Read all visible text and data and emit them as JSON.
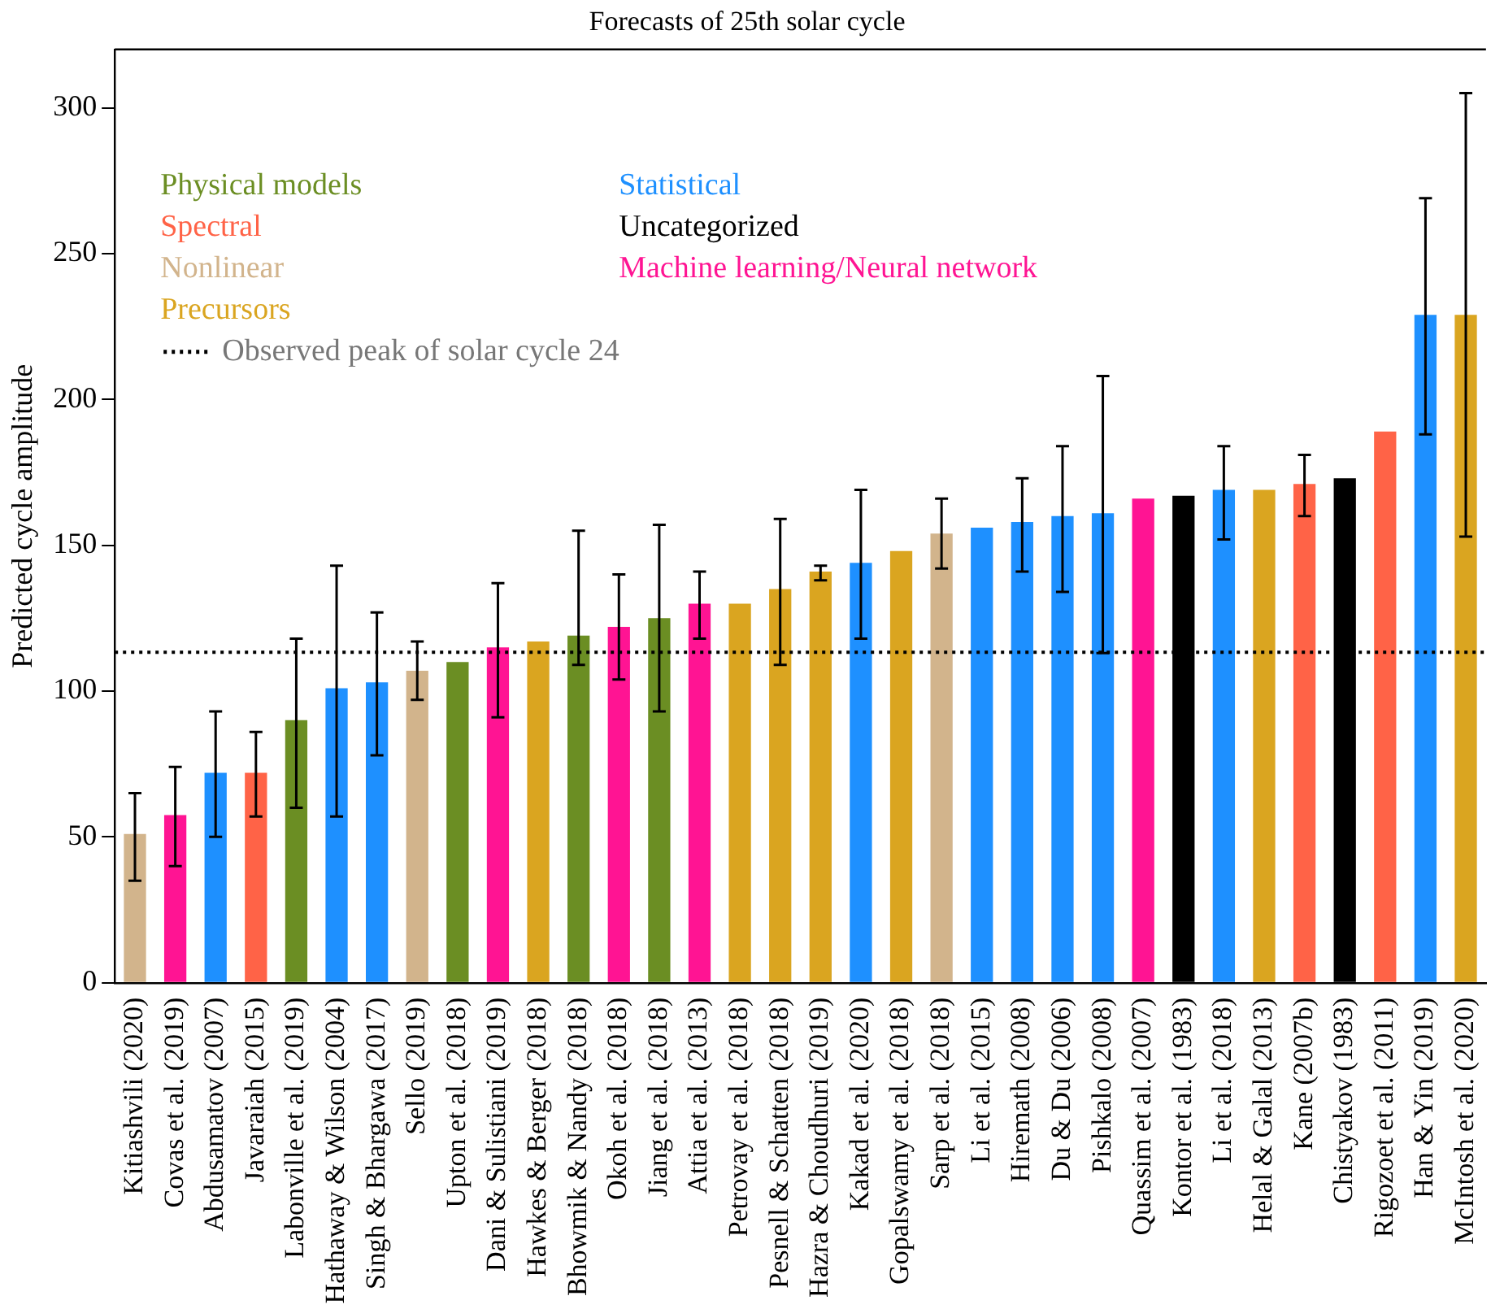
{
  "chart_data": {
    "type": "bar",
    "title": "Forecasts of 25th solar cycle",
    "ylabel": "Predicted cycle amplitude",
    "categories": [
      "Kitiashvili (2020)",
      "Covas et al. (2019)",
      "Abdusamatov (2007)",
      "Javaraiah (2015)",
      "Labonville et al. (2019)",
      "Hathaway & Wilson (2004)",
      "Singh & Bhargawa (2017)",
      "Sello (2019)",
      "Upton et al. (2018)",
      "Dani & Sulistiani (2019)",
      "Hawkes & Berger (2018)",
      "Bhowmik & Nandy (2018)",
      "Okoh et al. (2018)",
      "Jiang et al. (2018)",
      "Attia et al. (2013)",
      "Petrovay et al. (2018)",
      "Pesnell & Schatten (2018)",
      "Hazra & Choudhuri (2019)",
      "Kakad et al. (2020)",
      "Gopalswamy et al. (2018)",
      "Sarp et al. (2018)",
      "Li et al. (2015)",
      "Hiremath (2008)",
      "Du & Du (2006)",
      "Pishkalo (2008)",
      "Quassim et al. (2007)",
      "Kontor et al. (1983)",
      "Li et al. (2018)",
      "Helal & Galal (2013)",
      "Kane (2007b)",
      "Chistyakov (1983)",
      "Rigozoet et al. (2011)",
      "Han & Yin (2019)",
      "McIntosh et al. (2020)"
    ],
    "series": [
      {
        "name": "Physical models",
        "color": "#6b8e23",
        "values": [
          null,
          null,
          null,
          null,
          90,
          null,
          null,
          null,
          110,
          null,
          null,
          119,
          null,
          125,
          null,
          null,
          null,
          null,
          null,
          null,
          null,
          null,
          null,
          null,
          null,
          null,
          null,
          null,
          null,
          null,
          null,
          null,
          null,
          null
        ],
        "errors": [
          null,
          null,
          null,
          null,
          [
            60,
            118
          ],
          null,
          null,
          null,
          null,
          null,
          null,
          [
            109,
            155
          ],
          null,
          [
            93,
            157
          ],
          null,
          null,
          null,
          null,
          null,
          null,
          null,
          null,
          null,
          null,
          null,
          null,
          null,
          null,
          null,
          null,
          null,
          null,
          null,
          null
        ]
      },
      {
        "name": "Spectral",
        "color": "#ff6347",
        "values": [
          null,
          null,
          null,
          72,
          null,
          null,
          null,
          null,
          null,
          null,
          null,
          null,
          null,
          null,
          null,
          null,
          null,
          null,
          null,
          null,
          null,
          null,
          null,
          null,
          null,
          null,
          null,
          null,
          null,
          171,
          null,
          189,
          null,
          null
        ],
        "errors": [
          null,
          null,
          null,
          [
            57,
            86
          ],
          null,
          null,
          null,
          null,
          null,
          null,
          null,
          null,
          null,
          null,
          null,
          null,
          null,
          null,
          null,
          null,
          null,
          null,
          null,
          null,
          null,
          null,
          null,
          null,
          null,
          [
            160,
            181
          ],
          null,
          null,
          null,
          null
        ]
      },
      {
        "name": "Nonlinear",
        "color": "#d2b48c",
        "values": [
          51,
          null,
          null,
          null,
          null,
          null,
          null,
          107,
          null,
          null,
          null,
          null,
          null,
          null,
          null,
          null,
          null,
          null,
          null,
          null,
          154,
          null,
          null,
          null,
          null,
          null,
          null,
          null,
          null,
          null,
          null,
          null,
          null,
          null
        ],
        "errors": [
          [
            35,
            65
          ],
          null,
          null,
          null,
          null,
          null,
          null,
          [
            97,
            117
          ],
          null,
          null,
          null,
          null,
          null,
          null,
          null,
          null,
          null,
          null,
          null,
          null,
          [
            142,
            166
          ],
          null,
          null,
          null,
          null,
          null,
          null,
          null,
          null,
          null,
          null,
          null,
          null,
          null
        ]
      },
      {
        "name": "Precursors",
        "color": "#daa520",
        "values": [
          null,
          null,
          null,
          null,
          null,
          null,
          null,
          null,
          null,
          null,
          117,
          null,
          null,
          null,
          null,
          130,
          135,
          141,
          null,
          148,
          null,
          null,
          null,
          null,
          null,
          null,
          null,
          null,
          169,
          null,
          null,
          null,
          null,
          229
        ],
        "errors": [
          null,
          null,
          null,
          null,
          null,
          null,
          null,
          null,
          null,
          null,
          null,
          null,
          null,
          null,
          null,
          null,
          [
            109,
            159
          ],
          [
            138,
            143
          ],
          null,
          null,
          null,
          null,
          null,
          null,
          null,
          null,
          null,
          null,
          null,
          null,
          null,
          null,
          null,
          [
            153,
            305
          ]
        ]
      },
      {
        "name": "Statistical",
        "color": "#1e90ff",
        "values": [
          null,
          null,
          72,
          null,
          null,
          101,
          103,
          null,
          null,
          null,
          null,
          null,
          null,
          null,
          null,
          null,
          null,
          null,
          144,
          null,
          null,
          156,
          158,
          160,
          161,
          null,
          null,
          169,
          null,
          null,
          null,
          null,
          229,
          null
        ],
        "errors": [
          null,
          null,
          [
            50,
            93
          ],
          null,
          null,
          [
            57,
            143
          ],
          [
            78,
            127
          ],
          null,
          null,
          null,
          null,
          null,
          null,
          null,
          null,
          null,
          null,
          null,
          [
            118,
            169
          ],
          null,
          null,
          null,
          [
            141,
            173
          ],
          [
            134,
            184
          ],
          [
            113,
            208
          ],
          null,
          null,
          [
            152,
            184
          ],
          null,
          null,
          null,
          null,
          [
            188,
            269
          ],
          null
        ]
      },
      {
        "name": "Uncategorized",
        "color": "#000000",
        "values": [
          null,
          null,
          null,
          null,
          null,
          null,
          null,
          null,
          null,
          null,
          null,
          null,
          null,
          null,
          null,
          null,
          null,
          null,
          null,
          null,
          null,
          null,
          null,
          null,
          null,
          null,
          167,
          null,
          null,
          null,
          173,
          null,
          null,
          null
        ]
      },
      {
        "name": "Machine learning/Neural network",
        "color": "#ff1493",
        "values": [
          null,
          57.5,
          null,
          null,
          null,
          null,
          null,
          null,
          null,
          115,
          null,
          null,
          122,
          null,
          130,
          null,
          null,
          null,
          null,
          null,
          null,
          null,
          null,
          null,
          null,
          166,
          null,
          null,
          null,
          null,
          null,
          null,
          null,
          null
        ],
        "errors": [
          null,
          [
            40,
            74
          ],
          null,
          null,
          null,
          null,
          null,
          null,
          null,
          [
            91,
            137
          ],
          null,
          null,
          [
            104,
            140
          ],
          null,
          [
            118,
            141
          ],
          null,
          null,
          null,
          null,
          null,
          null,
          null,
          null,
          null,
          null,
          null,
          null,
          null,
          null,
          null,
          null,
          null,
          null,
          null
        ]
      }
    ],
    "ylim": [
      0,
      320
    ],
    "yticks": [
      0,
      50,
      100,
      150,
      200,
      250,
      300
    ],
    "grid": false,
    "legend": "top left",
    "ref_lines": [
      {
        "axis": "y",
        "value": 113.3,
        "label": "Observed peak of solar cycle 24",
        "color": "#000000",
        "line_style": "dotted"
      }
    ]
  }
}
